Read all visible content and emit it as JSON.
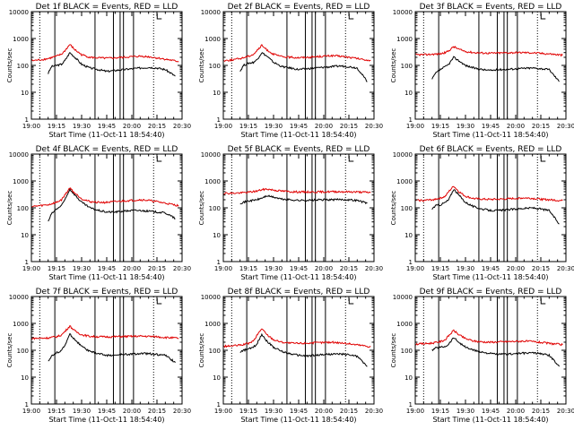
{
  "colors": {
    "events": "#000000",
    "lld": "#e00000",
    "axis": "#000000"
  },
  "shared": {
    "xlabel": "Start Time (11-Oct-11 18:54:40)",
    "ylabel": "Counts/sec",
    "x_ticks": [
      "19:00",
      "19:15",
      "19:30",
      "19:45",
      "20:00",
      "20:15",
      "20:30"
    ],
    "y_ticks": [
      "1",
      "10",
      "100",
      "1000",
      "10000"
    ],
    "xlim_minutes_after_1900": [
      0,
      90
    ],
    "ylim": [
      1,
      10000
    ],
    "y_scale": "log",
    "solid_markers": [
      14,
      38,
      49,
      53,
      55,
      61
    ],
    "dotted_markers": [
      5,
      73
    ],
    "marker_label": "L"
  },
  "chart_data": [
    {
      "type": "line",
      "title": "Det 1f BLACK = Events, RED = LLD",
      "series": [
        {
          "name": "Events",
          "start": 10,
          "end": 86,
          "x": [
            10,
            12,
            15,
            18,
            20,
            23,
            26,
            30,
            35,
            40,
            45,
            50,
            55,
            60,
            65,
            70,
            75,
            80,
            86
          ],
          "values": [
            50,
            90,
            100,
            110,
            150,
            300,
            200,
            110,
            80,
            70,
            60,
            65,
            70,
            75,
            80,
            85,
            80,
            70,
            40
          ]
        },
        {
          "name": "LLD",
          "start": 0,
          "end": 88,
          "x": [
            0,
            5,
            10,
            15,
            18,
            20,
            23,
            26,
            30,
            35,
            40,
            45,
            50,
            55,
            60,
            65,
            70,
            75,
            80,
            85,
            88
          ],
          "values": [
            150,
            160,
            180,
            220,
            260,
            350,
            600,
            380,
            250,
            200,
            190,
            185,
            190,
            200,
            210,
            220,
            210,
            190,
            170,
            150,
            140
          ]
        }
      ]
    },
    {
      "type": "line",
      "title": "Det 2f BLACK = Events, RED = LLD",
      "series": [
        {
          "name": "Events",
          "start": 10,
          "end": 86,
          "x": [
            10,
            12,
            15,
            18,
            20,
            23,
            26,
            30,
            35,
            40,
            45,
            50,
            55,
            60,
            65,
            70,
            75,
            80,
            86
          ],
          "values": [
            60,
            100,
            120,
            130,
            160,
            300,
            220,
            130,
            90,
            80,
            70,
            75,
            80,
            85,
            90,
            95,
            90,
            80,
            25
          ]
        },
        {
          "name": "LLD",
          "start": 0,
          "end": 88,
          "x": [
            0,
            5,
            10,
            15,
            18,
            20,
            23,
            26,
            30,
            35,
            40,
            45,
            50,
            55,
            60,
            65,
            70,
            75,
            80,
            85,
            88
          ],
          "values": [
            150,
            160,
            180,
            220,
            260,
            350,
            550,
            380,
            260,
            210,
            200,
            195,
            200,
            210,
            220,
            230,
            220,
            200,
            180,
            160,
            150
          ]
        }
      ]
    },
    {
      "type": "line",
      "title": "Det 3f BLACK = Events, RED = LLD",
      "series": [
        {
          "name": "Events",
          "start": 10,
          "end": 86,
          "x": [
            10,
            12,
            15,
            18,
            20,
            23,
            26,
            30,
            35,
            40,
            45,
            50,
            55,
            60,
            65,
            70,
            75,
            80,
            86
          ],
          "values": [
            30,
            50,
            70,
            90,
            110,
            200,
            150,
            100,
            80,
            70,
            65,
            70,
            72,
            75,
            78,
            80,
            76,
            70,
            25
          ]
        },
        {
          "name": "LLD",
          "start": 0,
          "end": 88,
          "x": [
            0,
            5,
            10,
            15,
            18,
            20,
            23,
            26,
            30,
            35,
            40,
            45,
            50,
            55,
            60,
            65,
            70,
            75,
            80,
            85,
            88
          ],
          "values": [
            250,
            250,
            260,
            270,
            300,
            350,
            500,
            400,
            330,
            300,
            290,
            285,
            290,
            295,
            300,
            300,
            295,
            280,
            270,
            250,
            240
          ]
        }
      ]
    },
    {
      "type": "line",
      "title": "Det 4f BLACK = Events, RED = LLD",
      "series": [
        {
          "name": "Events",
          "start": 10,
          "end": 86,
          "x": [
            10,
            12,
            15,
            18,
            20,
            23,
            26,
            30,
            35,
            40,
            45,
            50,
            55,
            60,
            65,
            70,
            75,
            80,
            86
          ],
          "values": [
            30,
            60,
            90,
            120,
            200,
            500,
            300,
            160,
            100,
            80,
            70,
            70,
            75,
            80,
            80,
            75,
            70,
            65,
            40
          ]
        },
        {
          "name": "LLD",
          "start": 0,
          "end": 88,
          "x": [
            0,
            5,
            10,
            15,
            18,
            20,
            23,
            26,
            30,
            35,
            40,
            45,
            50,
            55,
            60,
            65,
            70,
            75,
            80,
            85,
            88
          ],
          "values": [
            110,
            120,
            130,
            160,
            200,
            300,
            550,
            350,
            220,
            170,
            160,
            160,
            170,
            180,
            190,
            200,
            190,
            170,
            150,
            130,
            120
          ]
        }
      ]
    },
    {
      "type": "line",
      "title": "Det 5f BLACK = Events, RED = LLD",
      "series": [
        {
          "name": "Events",
          "start": 10,
          "end": 86,
          "x": [
            10,
            15,
            20,
            23,
            26,
            30,
            35,
            40,
            45,
            50,
            55,
            60,
            65,
            70,
            75,
            80,
            86
          ],
          "values": [
            150,
            180,
            200,
            230,
            280,
            250,
            210,
            200,
            190,
            190,
            195,
            200,
            200,
            205,
            200,
            190,
            150
          ]
        },
        {
          "name": "LLD",
          "start": 0,
          "end": 88,
          "x": [
            0,
            5,
            10,
            15,
            20,
            23,
            26,
            30,
            35,
            40,
            45,
            50,
            55,
            60,
            65,
            70,
            75,
            80,
            85,
            88
          ],
          "values": [
            350,
            350,
            360,
            380,
            420,
            470,
            500,
            460,
            420,
            400,
            390,
            390,
            390,
            395,
            400,
            400,
            395,
            390,
            380,
            370
          ]
        }
      ]
    },
    {
      "type": "line",
      "title": "Det 6f BLACK = Events, RED = LLD",
      "series": [
        {
          "name": "Events",
          "start": 10,
          "end": 86,
          "x": [
            10,
            12,
            15,
            18,
            20,
            23,
            26,
            30,
            35,
            40,
            45,
            50,
            55,
            60,
            65,
            70,
            75,
            80,
            86
          ],
          "values": [
            90,
            120,
            130,
            160,
            200,
            500,
            300,
            160,
            110,
            90,
            80,
            80,
            85,
            90,
            95,
            100,
            90,
            80,
            25
          ]
        },
        {
          "name": "LLD",
          "start": 0,
          "end": 88,
          "x": [
            0,
            5,
            10,
            15,
            18,
            20,
            23,
            26,
            30,
            35,
            40,
            45,
            50,
            55,
            60,
            65,
            70,
            75,
            80,
            85,
            88
          ],
          "values": [
            190,
            190,
            200,
            230,
            270,
            400,
            650,
            400,
            270,
            220,
            210,
            205,
            210,
            215,
            225,
            235,
            225,
            210,
            200,
            190,
            185
          ]
        }
      ]
    },
    {
      "type": "line",
      "title": "Det 7f BLACK = Events, RED = LLD",
      "series": [
        {
          "name": "Events",
          "start": 10,
          "end": 86,
          "x": [
            10,
            12,
            15,
            18,
            20,
            23,
            26,
            30,
            35,
            40,
            45,
            50,
            55,
            60,
            65,
            70,
            75,
            80,
            86
          ],
          "values": [
            40,
            60,
            80,
            100,
            150,
            400,
            250,
            140,
            90,
            75,
            65,
            65,
            70,
            72,
            75,
            75,
            70,
            65,
            35
          ]
        },
        {
          "name": "LLD",
          "start": 0,
          "end": 88,
          "x": [
            0,
            5,
            10,
            15,
            18,
            20,
            23,
            26,
            30,
            35,
            40,
            45,
            50,
            55,
            60,
            65,
            70,
            75,
            80,
            85,
            88
          ],
          "values": [
            280,
            280,
            290,
            320,
            370,
            500,
            800,
            520,
            380,
            330,
            320,
            315,
            320,
            325,
            330,
            335,
            330,
            320,
            300,
            290,
            280
          ]
        }
      ]
    },
    {
      "type": "line",
      "title": "Det 8f BLACK = Events, RED = LLD",
      "series": [
        {
          "name": "Events",
          "start": 10,
          "end": 86,
          "x": [
            10,
            12,
            15,
            18,
            20,
            23,
            26,
            30,
            35,
            40,
            45,
            50,
            55,
            60,
            65,
            70,
            75,
            80,
            86
          ],
          "values": [
            80,
            100,
            110,
            130,
            170,
            400,
            220,
            130,
            90,
            75,
            65,
            62,
            65,
            70,
            72,
            72,
            68,
            60,
            25
          ]
        },
        {
          "name": "LLD",
          "start": 0,
          "end": 88,
          "x": [
            0,
            5,
            10,
            15,
            18,
            20,
            23,
            26,
            30,
            35,
            40,
            45,
            50,
            55,
            60,
            65,
            70,
            75,
            80,
            85,
            88
          ],
          "values": [
            140,
            145,
            155,
            180,
            220,
            350,
            650,
            380,
            250,
            200,
            185,
            180,
            185,
            190,
            195,
            200,
            190,
            175,
            160,
            145,
            135
          ]
        }
      ]
    },
    {
      "type": "line",
      "title": "Det 9f BLACK = Events, RED = LLD",
      "series": [
        {
          "name": "Events",
          "start": 10,
          "end": 86,
          "x": [
            10,
            12,
            15,
            18,
            20,
            23,
            26,
            30,
            35,
            40,
            45,
            50,
            55,
            60,
            65,
            70,
            75,
            80,
            86
          ],
          "values": [
            100,
            120,
            130,
            140,
            170,
            300,
            200,
            130,
            100,
            85,
            75,
            70,
            72,
            75,
            78,
            80,
            75,
            65,
            25
          ]
        },
        {
          "name": "LLD",
          "start": 0,
          "end": 88,
          "x": [
            0,
            5,
            10,
            15,
            18,
            20,
            23,
            26,
            30,
            35,
            40,
            45,
            50,
            55,
            60,
            65,
            70,
            75,
            80,
            85,
            88
          ],
          "values": [
            170,
            175,
            185,
            210,
            250,
            350,
            550,
            380,
            270,
            220,
            205,
            200,
            205,
            210,
            215,
            220,
            210,
            195,
            180,
            170,
            160
          ]
        }
      ]
    }
  ]
}
